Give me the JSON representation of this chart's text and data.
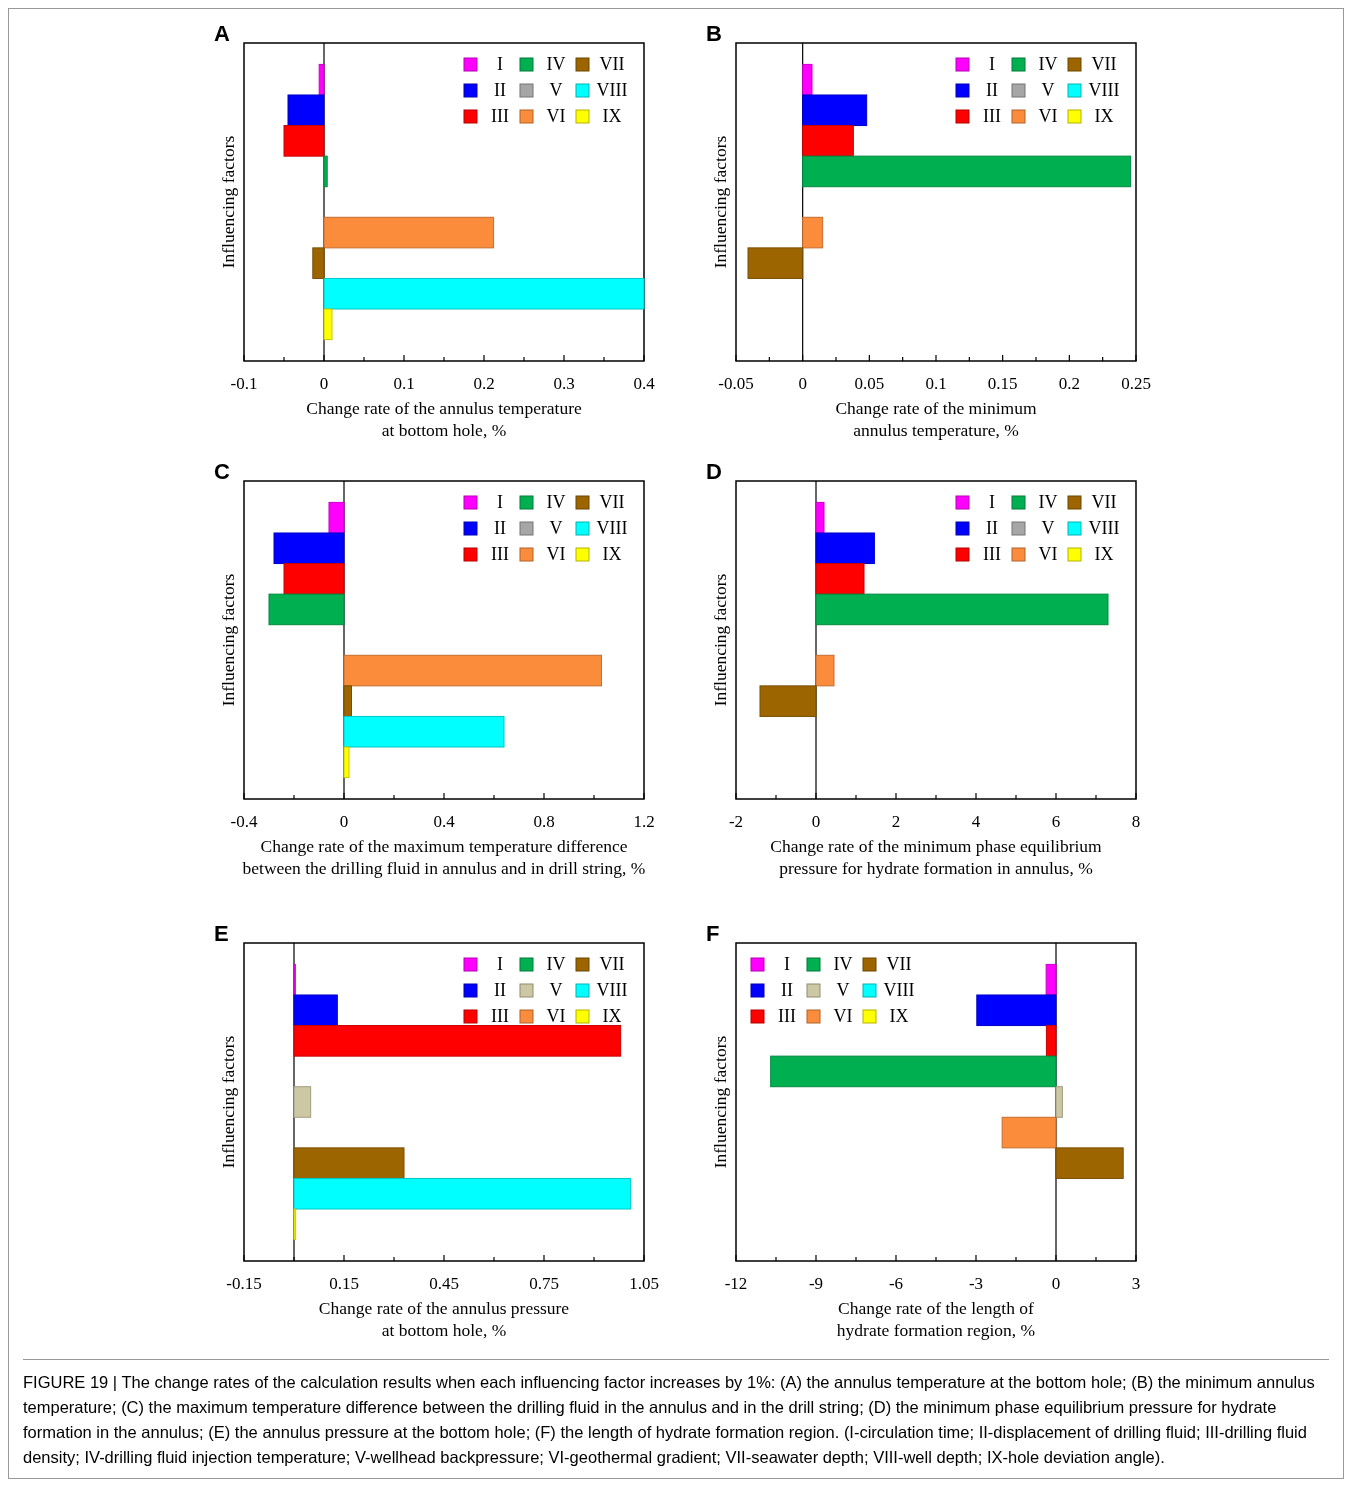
{
  "chart_data": [
    {
      "type": "bar",
      "orientation": "horizontal",
      "title": "A",
      "ylabel": "Influencing factors",
      "xlabel": "Change rate of the annulus temperature\nat bottom hole, %",
      "categories": [
        null
      ],
      "xlim": [
        -0.1,
        0.4
      ],
      "xticks": [
        -0.1,
        {
          "value": -0.05,
          "label": null
        },
        0,
        {
          "value": 0.05,
          "label": null
        },
        0.1,
        {
          "value": 0.15,
          "label": null
        },
        0.2,
        {
          "value": 0.25,
          "label": null
        },
        0.3,
        {
          "value": 0.35,
          "label": null
        },
        0.4
      ],
      "legend": "top right",
      "series": [
        {
          "name": "I",
          "color": "#ff00ff",
          "values": [
            -0.006
          ]
        },
        {
          "name": "II",
          "color": "#0000ff",
          "values": [
            -0.045
          ]
        },
        {
          "name": "III",
          "color": "#ff0000",
          "values": [
            -0.05
          ]
        },
        {
          "name": "IV",
          "color": "#00b050",
          "values": [
            0.004
          ]
        },
        {
          "name": "V",
          "color": "#a6a6a6",
          "values": [
            0
          ]
        },
        {
          "name": "VI",
          "color": "#fb8c3c",
          "values": [
            0.212
          ]
        },
        {
          "name": "VII",
          "color": "#9c6500",
          "values": [
            -0.014
          ]
        },
        {
          "name": "VIII",
          "color": "#00ffff",
          "values": [
            0.4
          ]
        },
        {
          "name": "IX",
          "color": "#ffff00",
          "values": [
            0.01
          ]
        }
      ]
    },
    {
      "type": "bar",
      "orientation": "horizontal",
      "title": "B",
      "ylabel": "Influencing factors",
      "xlabel": "Change rate of the minimum\nannulus temperature, %",
      "categories": [
        null
      ],
      "xlim": [
        -0.05,
        0.25
      ],
      "xticks": [
        -0.05,
        {
          "value": -0.025,
          "label": null
        },
        0,
        {
          "value": 0.025,
          "label": null
        },
        0.05,
        {
          "value": 0.075,
          "label": null
        },
        0.1,
        {
          "value": 0.125,
          "label": null
        },
        0.15,
        {
          "value": 0.175,
          "label": null
        },
        0.2,
        {
          "value": 0.225,
          "label": null
        },
        0.25
      ],
      "legend": "top right",
      "series": [
        {
          "name": "I",
          "color": "#ff00ff",
          "values": [
            0.007
          ]
        },
        {
          "name": "II",
          "color": "#0000ff",
          "values": [
            0.048
          ]
        },
        {
          "name": "III",
          "color": "#ff0000",
          "values": [
            0.038
          ]
        },
        {
          "name": "IV",
          "color": "#00b050",
          "values": [
            0.246
          ]
        },
        {
          "name": "V",
          "color": "#a6a6a6",
          "values": [
            0
          ]
        },
        {
          "name": "VI",
          "color": "#fb8c3c",
          "values": [
            0.015
          ]
        },
        {
          "name": "VII",
          "color": "#9c6500",
          "values": [
            -0.041
          ]
        },
        {
          "name": "VIII",
          "color": "#00ffff",
          "values": [
            0
          ]
        },
        {
          "name": "IX",
          "color": "#ffff00",
          "values": [
            0
          ]
        }
      ]
    },
    {
      "type": "bar",
      "orientation": "horizontal",
      "title": "C",
      "ylabel": "Influencing factors",
      "xlabel": "Change rate of the maximum temperature difference\nbetween the drilling fluid in annulus and in drill string, %",
      "categories": [
        null
      ],
      "xlim": [
        -0.4,
        1.2
      ],
      "xticks": [
        -0.4,
        {
          "value": -0.2,
          "label": null
        },
        0,
        {
          "value": 0.2,
          "label": null
        },
        0.4,
        {
          "value": 0.6,
          "label": null
        },
        0.8,
        {
          "value": 1.0,
          "label": null
        },
        1.2
      ],
      "legend": "top right",
      "series": [
        {
          "name": "I",
          "color": "#ff00ff",
          "values": [
            -0.06
          ]
        },
        {
          "name": "II",
          "color": "#0000ff",
          "values": [
            -0.28
          ]
        },
        {
          "name": "III",
          "color": "#ff0000",
          "values": [
            -0.24
          ]
        },
        {
          "name": "IV",
          "color": "#00b050",
          "values": [
            -0.3
          ]
        },
        {
          "name": "V",
          "color": "#a6a6a6",
          "values": [
            0
          ]
        },
        {
          "name": "VI",
          "color": "#fb8c3c",
          "values": [
            1.03
          ]
        },
        {
          "name": "VII",
          "color": "#9c6500",
          "values": [
            0.03
          ]
        },
        {
          "name": "VIII",
          "color": "#00ffff",
          "values": [
            0.64
          ]
        },
        {
          "name": "IX",
          "color": "#ffff00",
          "values": [
            0.02
          ]
        }
      ]
    },
    {
      "type": "bar",
      "orientation": "horizontal",
      "title": "D",
      "ylabel": "Influencing factors",
      "xlabel": "Change rate of the minimum phase equilibrium\npressure for hydrate formation in annulus, %",
      "categories": [
        null
      ],
      "xlim": [
        -2,
        8
      ],
      "xticks": [
        -2,
        {
          "value": -1,
          "label": null
        },
        0,
        {
          "value": 1,
          "label": null
        },
        2,
        {
          "value": 3,
          "label": null
        },
        4,
        {
          "value": 5,
          "label": null
        },
        6,
        {
          "value": 7,
          "label": null
        },
        8
      ],
      "legend": "top right",
      "series": [
        {
          "name": "I",
          "color": "#ff00ff",
          "values": [
            0.2
          ]
        },
        {
          "name": "II",
          "color": "#0000ff",
          "values": [
            1.46
          ]
        },
        {
          "name": "III",
          "color": "#ff0000",
          "values": [
            1.2
          ]
        },
        {
          "name": "IV",
          "color": "#00b050",
          "values": [
            7.3
          ]
        },
        {
          "name": "V",
          "color": "#a6a6a6",
          "values": [
            0
          ]
        },
        {
          "name": "VI",
          "color": "#fb8c3c",
          "values": [
            0.45
          ]
        },
        {
          "name": "VII",
          "color": "#9c6500",
          "values": [
            -1.4
          ]
        },
        {
          "name": "VIII",
          "color": "#00ffff",
          "values": [
            0
          ]
        },
        {
          "name": "IX",
          "color": "#ffff00",
          "values": [
            0
          ]
        }
      ]
    },
    {
      "type": "bar",
      "orientation": "horizontal",
      "title": "E",
      "ylabel": "Influencing factors",
      "xlabel": "Change rate of the annulus pressure\nat bottom hole, %",
      "categories": [
        null
      ],
      "xlim": [
        -0.15,
        1.05
      ],
      "xticks": [
        -0.15,
        {
          "value": 0,
          "label": null
        },
        0.15,
        {
          "value": 0.3,
          "label": null
        },
        0.45,
        {
          "value": 0.6,
          "label": null
        },
        0.75,
        {
          "value": 0.9,
          "label": null
        },
        1.05
      ],
      "legend": "top right",
      "series": [
        {
          "name": "I",
          "color": "#ff00ff",
          "values": [
            0.004
          ]
        },
        {
          "name": "II",
          "color": "#0000ff",
          "values": [
            0.13
          ]
        },
        {
          "name": "III",
          "color": "#ff0000",
          "values": [
            0.98
          ]
        },
        {
          "name": "IV",
          "color": "#00b050",
          "values": [
            0
          ]
        },
        {
          "name": "V",
          "color": "#cdc8a4",
          "values": [
            0.05
          ]
        },
        {
          "name": "VI",
          "color": "#fb8c3c",
          "values": [
            0
          ]
        },
        {
          "name": "VII",
          "color": "#9c6500",
          "values": [
            0.33
          ]
        },
        {
          "name": "VIII",
          "color": "#00ffff",
          "values": [
            1.01
          ]
        },
        {
          "name": "IX",
          "color": "#ffff00",
          "values": [
            0.005
          ]
        }
      ]
    },
    {
      "type": "bar",
      "orientation": "horizontal",
      "title": "F",
      "ylabel": "Influencing factors",
      "xlabel": "Change rate of the length of\nhydrate formation region, %",
      "categories": [
        null
      ],
      "xlim": [
        -12,
        3
      ],
      "xticks": [
        -12,
        {
          "value": -10.5,
          "label": null
        },
        -9,
        {
          "value": -7.5,
          "label": null
        },
        -6,
        {
          "value": -4.5,
          "label": null
        },
        -3,
        {
          "value": -1.5,
          "label": null
        },
        0,
        {
          "value": 1.5,
          "label": null
        },
        3
      ],
      "legend": "top left",
      "annotations": [
        "FIGURE 19 | The change rates of the calculation results when each influencing factor increases by 1%: (A) the annulus temperature at the bottom hole; (B) the minimum annulus temperature; (C) the maximum temperature difference between the drilling fluid in the annulus and in the drill string; (D) the minimum phase equilibrium pressure for hydrate formation in the annulus; (E) the annulus pressure at the bottom hole; (F) the length of hydrate formation region. (I-circulation time; II-displacement of drilling fluid; III-drilling fluid density; IV-drilling fluid injection temperature; V-wellhead backpressure; VI-geothermal gradient; VII-seawater depth; VIII-well depth; IX-hole deviation angle)."
      ],
      "series": [
        {
          "name": "I",
          "color": "#ff00ff",
          "values": [
            -0.37
          ]
        },
        {
          "name": "II",
          "color": "#0000ff",
          "values": [
            -2.97
          ]
        },
        {
          "name": "III",
          "color": "#ff0000",
          "values": [
            -0.36
          ]
        },
        {
          "name": "IV",
          "color": "#00b050",
          "values": [
            -10.7
          ]
        },
        {
          "name": "V",
          "color": "#cdc8a4",
          "values": [
            0.24
          ]
        },
        {
          "name": "VI",
          "color": "#fb8c3c",
          "values": [
            -2.02
          ]
        },
        {
          "name": "VII",
          "color": "#9c6500",
          "values": [
            2.52
          ]
        },
        {
          "name": "VIII",
          "color": "#00ffff",
          "values": [
            0
          ]
        },
        {
          "name": "IX",
          "color": "#ffff00",
          "values": [
            0
          ]
        }
      ]
    }
  ]
}
